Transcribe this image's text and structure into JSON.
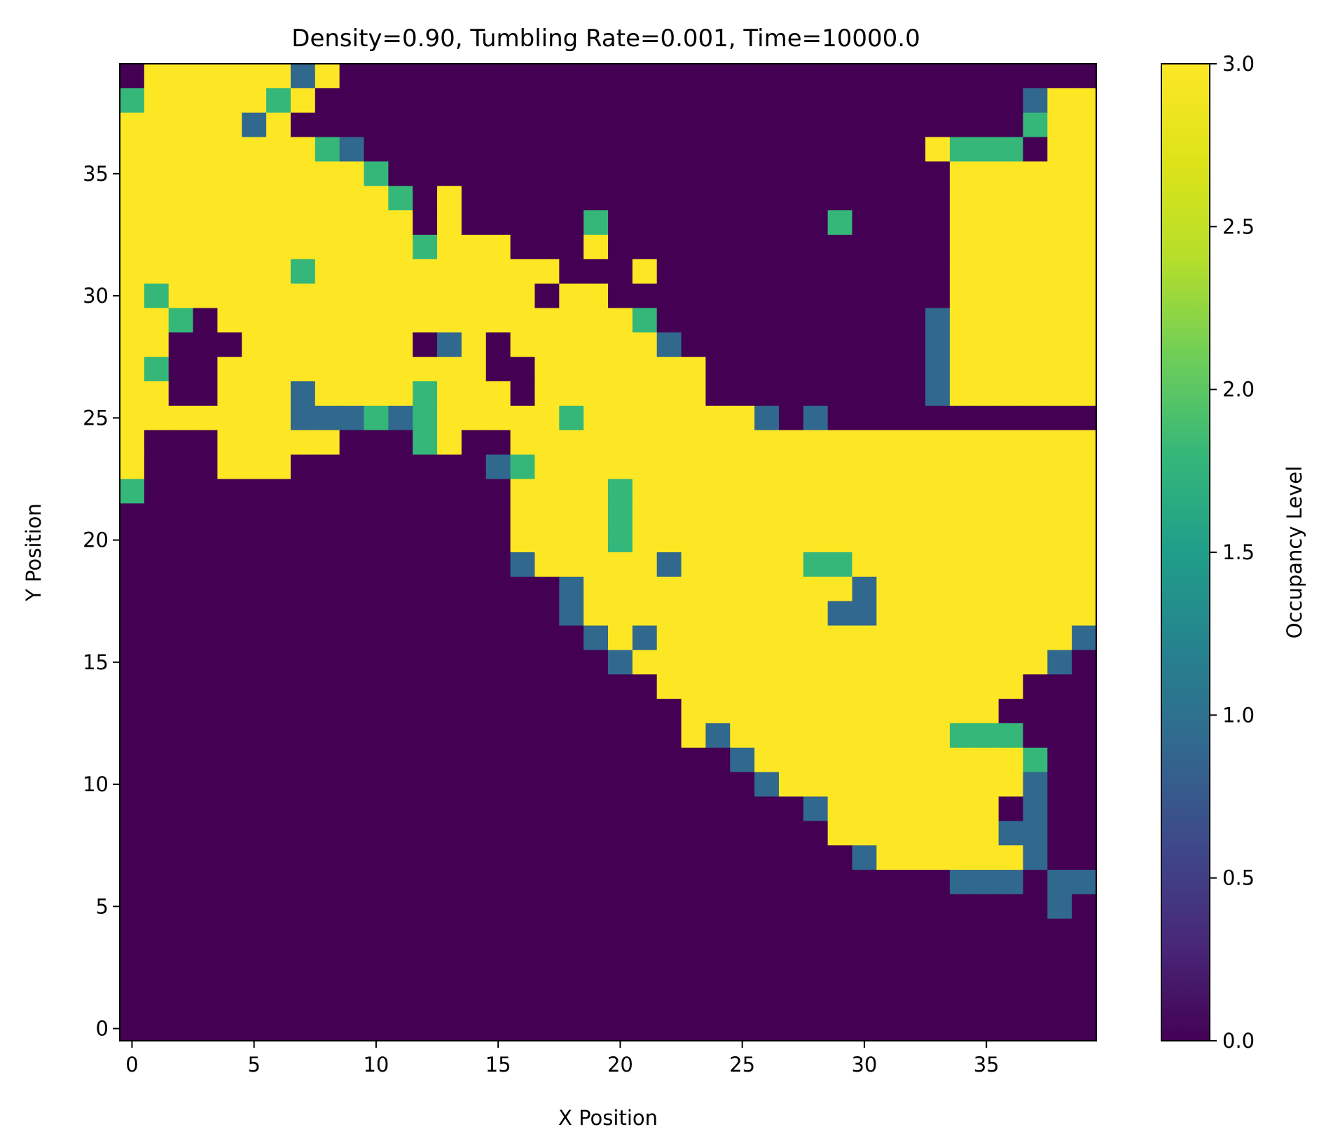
{
  "chart_data": {
    "type": "heatmap",
    "title": "Density=0.90, Tumbling Rate=0.001, Time=10000.0",
    "xlabel": "X Position",
    "ylabel": "Y Position",
    "colorbar_label": "Occupancy Level",
    "grid_size": [
      40,
      40
    ],
    "xlim": [
      -0.5,
      39.5
    ],
    "ylim": [
      -0.5,
      39.5
    ],
    "x_ticks": [
      0,
      5,
      10,
      15,
      20,
      25,
      30,
      35
    ],
    "y_ticks": [
      0,
      5,
      10,
      15,
      20,
      25,
      30,
      35
    ],
    "colorbar_ticks": [
      "0.0",
      "0.5",
      "1.0",
      "1.5",
      "2.0",
      "2.5",
      "3.0"
    ],
    "vmin": 0,
    "vmax": 3,
    "colormap": "viridis",
    "colors": {
      "0": "#440154",
      "1": "#31688e",
      "2": "#35b779",
      "3": "#fde725"
    },
    "row_order": "y=39 first, y=0 last; each string lists x=0..39",
    "rows": [
      "0333333130000000000000000000000000000000",
      "2333332300000000000000000000000000000133",
      "3333313000000000000000000000000000000233",
      "3333333321000000000000000000000003222033",
      "3333333333200000000000000000000000333333",
      "3333333333320300000000000000000000333333",
      "3333333333330300000200000000020000333333",
      "3333333333332333000300000000000000333333",
      "3333333233333333330003000000000000333333",
      "3233333333333333303300000000000000333333",
      "3320333333333333333332000000000001333333",
      "3300033333330130333333100000000001333333",
      "3200333333333330033333330000000001333333",
      "3300333133332333033333330000000001333333",
      "3333333111212333332333333310100000000000",
      "3000333330002300333333333333333333333333",
      "3000333000000001233333333333333333333333",
      "2000000000000000333323333333333333333333",
      "0000000000000000333323333333333333333333",
      "0000000000000000333323333333333333333333",
      "0000000000000000133333133333223333333333",
      "0000000000000000001333333333331333333333",
      "0000000000000000001333333333311333333333",
      "0000000000000000000131333333333333333331",
      "0000000000000000000013333333333333333310",
      "0000000000000000000000333333333333333000",
      "0000000000000000000000033333333333330000",
      "0000000000000000000000031333333333222000",
      "0000000000000000000000000133333333333200",
      "0000000000000000000000000013333333333100",
      "0000000000000000000000000000133333330100",
      "0000000000000000000000000000033333331100",
      "0000000000000000000000000000001333333100",
      "0000000000000000000000000000000000111011",
      "0000000000000000000000000000000000000010",
      "0000000000000000000000000000000000000000",
      "0000000000000000000000000000000000000000",
      "0000000000000000000000000000000000000000",
      "0000000000000000000000000000000000000000",
      "0000000000000000000000000000000000000000"
    ]
  }
}
